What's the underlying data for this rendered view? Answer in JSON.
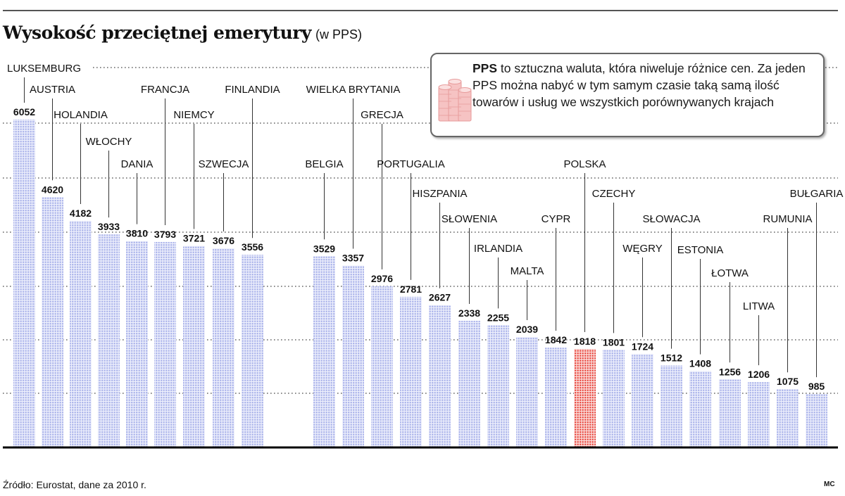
{
  "title": {
    "main": "Wysokość przeciętnej emerytury",
    "sub": "(w PPS)"
  },
  "info_box": {
    "term": "PPS",
    "text": "to sztuczna waluta, która niweluje różnice cen. Za jeden PPS można nabyć w tym samym czasie taką samą ilość towarów i usług we wszystkich porównywanych krajach",
    "icon": "coin-stack-icon"
  },
  "source": "Źródło: Eurostat, dane za 2010 r.",
  "author": "MC",
  "colors": {
    "bar": "#a9b2ea",
    "highlight": "#e8443c",
    "text": "#111111",
    "gridline": "#666666"
  },
  "chart_data": {
    "type": "bar",
    "title": "Wysokość przeciętnej emerytury",
    "subtitle": "(w PPS)",
    "grid": true,
    "ylim": [
      0,
      6052
    ],
    "categories": [
      "LUKSEMBURG",
      "AUSTRIA",
      "HOLANDIA",
      "WŁOCHY",
      "DANIA",
      "FRANCJA",
      "NIEMCY",
      "SZWECJA",
      "FINLANDIA",
      "BELGIA",
      "WIELKA BRYTANIA",
      "GRECJA",
      "PORTUGALIA",
      "HISZPANIA",
      "SŁOWENIA",
      "IRLANDIA",
      "MALTA",
      "CYPR",
      "POLSKA",
      "CZECHY",
      "WĘGRY",
      "SŁOWACJA",
      "ESTONIA",
      "ŁOTWA",
      "LITWA",
      "RUMUNIA",
      "BUŁGARIA"
    ],
    "values": [
      6052,
      4620,
      4182,
      3933,
      3810,
      3793,
      3721,
      3676,
      3556,
      3529,
      3357,
      2976,
      2781,
      2627,
      2338,
      2255,
      2039,
      1842,
      1818,
      1801,
      1724,
      1512,
      1408,
      1256,
      1206,
      1075,
      985
    ],
    "highlight": "POLSKA"
  }
}
